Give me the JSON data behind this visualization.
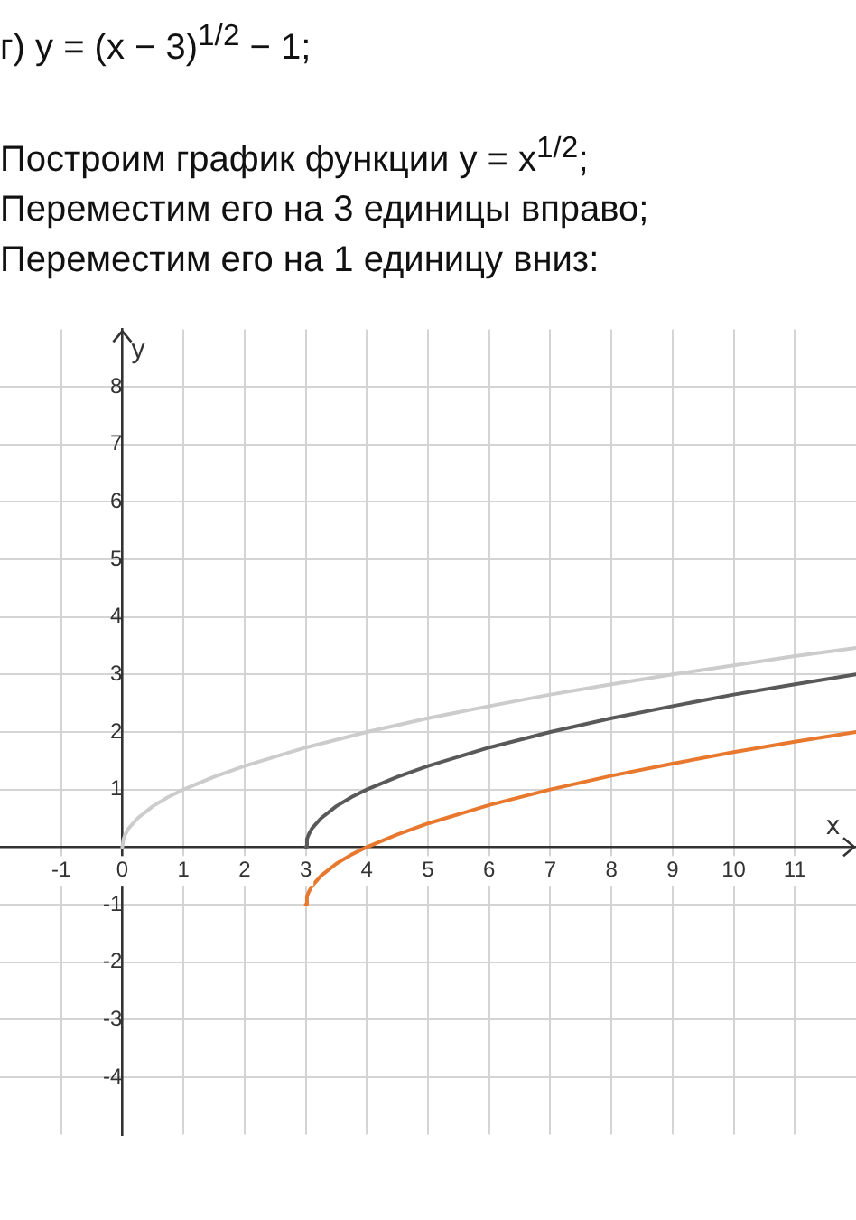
{
  "chart_data": {
    "type": "line",
    "title": "г) y = (x − 3)$^{1/2}$ − 1;",
    "annotations": [
      "Построим график функции y = x$^{1/2}$;",
      "Переместим его на 3 единицы вправо;",
      "Переместим его на 1 единицу вниз:"
    ],
    "xlabel": "x",
    "ylabel": "y",
    "series": [
      {
        "color": "#cccccc",
        "x": [
          0,
          0.02,
          0.05,
          0.1,
          0.25,
          0.5,
          0.75,
          1,
          1.5,
          2,
          3,
          4,
          5,
          6,
          7,
          8,
          9,
          10,
          11,
          12
        ],
        "values": [
          0,
          0.14,
          0.22,
          0.32,
          0.5,
          0.71,
          0.87,
          1,
          1.22,
          1.41,
          1.73,
          2,
          2.24,
          2.45,
          2.65,
          2.83,
          3,
          3.16,
          3.32,
          3.46
        ]
      },
      {
        "color": "#595959",
        "x": [
          3,
          3.02,
          3.05,
          3.1,
          3.25,
          3.5,
          3.75,
          4,
          4.5,
          5,
          6,
          7,
          8,
          9,
          10,
          11,
          12
        ],
        "values": [
          0,
          0.14,
          0.22,
          0.32,
          0.5,
          0.71,
          0.87,
          1,
          1.22,
          1.41,
          1.73,
          2,
          2.24,
          2.45,
          2.65,
          2.83,
          3
        ]
      },
      {
        "color": "#e8782e",
        "x": [
          3,
          3.02,
          3.05,
          3.1,
          3.25,
          3.5,
          3.75,
          4,
          4.5,
          5,
          6,
          7,
          8,
          9,
          10,
          11,
          12
        ],
        "values": [
          -1,
          -0.86,
          -0.78,
          -0.68,
          -0.5,
          -0.29,
          -0.13,
          0,
          0.22,
          0.41,
          0.73,
          1,
          1.24,
          1.45,
          1.65,
          1.83,
          2
        ]
      }
    ],
    "xlim": [
      -2,
      12
    ],
    "ylim": [
      -5,
      9
    ],
    "xticks": [
      -1,
      0,
      1,
      2,
      3,
      4,
      5,
      6,
      7,
      8,
      9,
      10,
      11
    ],
    "yticks": [
      -4,
      -3,
      -2,
      -1,
      {
        "value": 0,
        "label": null
      },
      1,
      2,
      3,
      4,
      5,
      6,
      7,
      8
    ],
    "grid": true,
    "marker": "none",
    "line_style": "solid"
  }
}
